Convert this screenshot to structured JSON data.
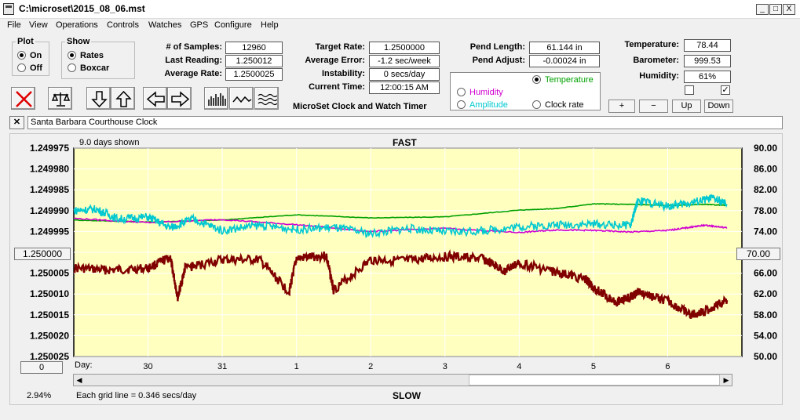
{
  "window": {
    "title": "C:\\microset\\2015_08_06.mst",
    "min": "_",
    "max": "□",
    "close": "X"
  },
  "menu": [
    "File",
    "View",
    "Operations",
    "Controls",
    "Watches",
    "GPS",
    "Configure",
    "Help"
  ],
  "plot": {
    "legend": "Plot",
    "on": "On",
    "off": "Off",
    "selected": "On"
  },
  "show": {
    "legend": "Show",
    "rates": "Rates",
    "boxcar": "Boxcar",
    "selected": "Rates"
  },
  "stats": {
    "samples_label": "# of Samples:",
    "samples": "12960",
    "last_label": "Last Reading:",
    "last": "1.250012",
    "avg_label": "Average Rate:",
    "avg": "1.2500025",
    "target_label": "Target Rate:",
    "target": "1.2500000",
    "avgerr_label": "Average Error:",
    "avgerr": "-1.2 sec/week",
    "instab_label": "Instability:",
    "instab": "0 secs/day",
    "time_label": "Current Time:",
    "time": "12:00:15 AM",
    "pendlen_label": "Pend Length:",
    "pendlen": "61.144 in",
    "pendadj_label": "Pend Adjust:",
    "pendadj": "-0.00024 in",
    "temp_label": "Temperature:",
    "temp": "78.44",
    "baro_label": "Barometer:",
    "baro": "999.53",
    "hum_label": "Humidity:",
    "hum": "61%"
  },
  "app_name": "MicroSet Clock and Watch Timer",
  "aux": {
    "temperature": "Temperature",
    "humidity": "Humidity",
    "amplitude": "Amplitude",
    "clockrate": "Clock rate",
    "selected": "Temperature",
    "colors": {
      "temperature": "#00a000",
      "humidity": "#d000d0",
      "amplitude": "#00c8d0",
      "clockrate": "#000000"
    }
  },
  "aux_buttons": {
    "plus": "+",
    "minus": "−",
    "up": "Up",
    "down": "Down"
  },
  "toolbar_icons": [
    "close-x-icon",
    "balance-scale-icon",
    "arrow-down-icon",
    "arrow-up-icon",
    "arrow-left-icon",
    "arrow-right-icon",
    "bar-graph-icon",
    "wave-icon",
    "multi-wave-icon"
  ],
  "clock_name": "Santa Barbara Courthouse Clock",
  "plot_area": {
    "days_shown": "9.0 days shown",
    "fast": "FAST",
    "slow": "SLOW",
    "grid_note": "Each grid line = 0.346 secs/day",
    "percent": "2.94%",
    "left_value": "1.250000",
    "right_value": "70.00",
    "bottom_value": "0",
    "day_label": "Day:",
    "bg": "#ffffc0"
  },
  "chart_data": {
    "type": "line",
    "x_days": [
      "30",
      "31",
      "1",
      "2",
      "3",
      "4",
      "5",
      "6"
    ],
    "y_left_ticks": [
      "1.249975",
      "1.249980",
      "1.249985",
      "1.249990",
      "1.249995",
      "1.250000",
      "1.250005",
      "1.250010",
      "1.250015",
      "1.250020",
      "1.250025"
    ],
    "y_right_ticks": [
      "90.00",
      "86.00",
      "82.00",
      "78.00",
      "74.00",
      "70.00",
      "66.00",
      "62.00",
      "58.00",
      "54.00",
      "50.00"
    ],
    "ylim_left": [
      1.249975,
      1.250025
    ],
    "ylim_right": [
      50,
      90
    ],
    "xlim_days": [
      0,
      9
    ],
    "series": [
      {
        "name": "Clock rate",
        "color": "#800000",
        "x": [
          0,
          0.5,
          1,
          1.3,
          1.4,
          1.5,
          2,
          2.5,
          2.9,
          3,
          3.4,
          3.5,
          4,
          4.5,
          5,
          5.5,
          5.8,
          6,
          6.5,
          6.9,
          7,
          7.3,
          7.5,
          7.6,
          8,
          8.3,
          8.5,
          8.8
        ],
        "y": [
          1.2500038,
          1.2500043,
          1.2500038,
          1.2500012,
          1.2500108,
          1.2500038,
          1.2500018,
          1.2500018,
          1.2500095,
          1.2500015,
          1.2500008,
          1.250009,
          1.2500018,
          1.250002,
          1.250001,
          1.2500015,
          1.2500045,
          1.2500025,
          1.2500048,
          1.2500065,
          1.2500085,
          1.2500118,
          1.2500108,
          1.2500095,
          1.2500118,
          1.250015,
          1.2500142,
          1.2500115
        ]
      },
      {
        "name": "Temperature",
        "color": "#00a000",
        "x": [
          0,
          1,
          2,
          3,
          4,
          5,
          6,
          6.5,
          7,
          7.5,
          8,
          8.5,
          8.8
        ],
        "y": [
          76.2,
          75.8,
          76.2,
          77.2,
          76.6,
          76.8,
          78.1,
          78.4,
          79.3,
          79.2,
          79.0,
          79.2,
          79.0
        ]
      },
      {
        "name": "Humidity",
        "color": "#d000d0",
        "x": [
          0,
          1,
          2,
          3,
          4,
          5,
          6,
          6.5,
          7,
          7.5,
          8,
          8.3,
          8.5,
          8.8
        ],
        "y": [
          76.5,
          75.7,
          76.3,
          75.3,
          74.0,
          74.6,
          73.8,
          74.3,
          74.2,
          73.9,
          74.2,
          74.8,
          75.2,
          74.7
        ]
      },
      {
        "name": "Amplitude",
        "color": "#00c8d0",
        "x": [
          0,
          0.3,
          0.6,
          1,
          1.3,
          1.6,
          2,
          2.5,
          3,
          3.5,
          4,
          4.5,
          5,
          5.5,
          6,
          6.5,
          7,
          7.5,
          7.6,
          8,
          8.3,
          8.6,
          8.8
        ],
        "y": [
          78.0,
          78.3,
          76.4,
          76.8,
          74.7,
          76.4,
          74.2,
          75.2,
          74.4,
          74.8,
          73.6,
          74.6,
          73.9,
          74.1,
          74.9,
          75.3,
          75.4,
          75.2,
          80.0,
          78.8,
          79.5,
          80.4,
          79.2
        ]
      }
    ]
  }
}
